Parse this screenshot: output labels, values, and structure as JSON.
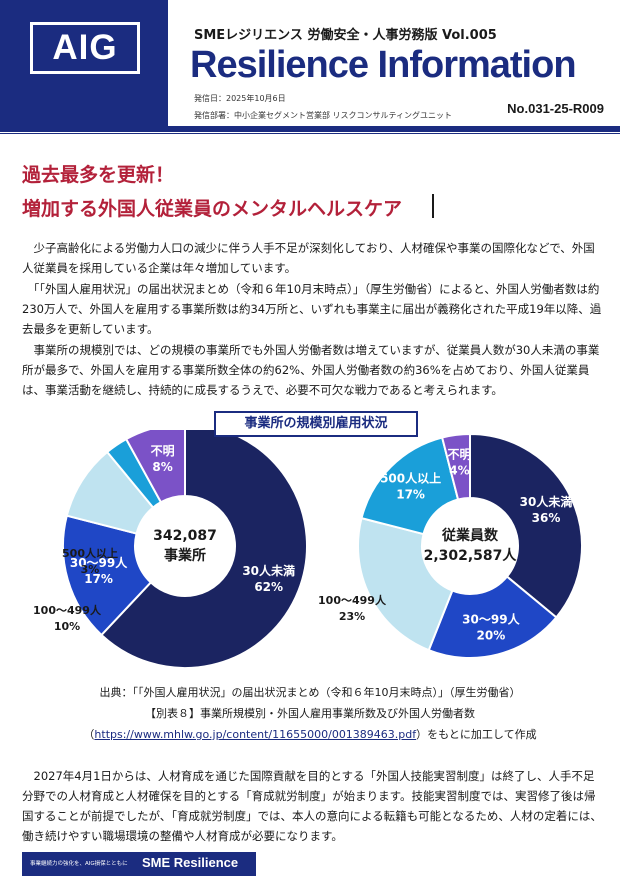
{
  "header": {
    "logo_text": "AIG",
    "series": "SMEレジリエンス 労働安全・人事労務版  Vol.005",
    "title": "Resilience Information",
    "issue_date": "発信日：2025年10月6日",
    "issuer": "発信部署：中小企業セグメント営業部  リスクコンサルティングユニット",
    "doc_number": "No.031-25-R009"
  },
  "headline": {
    "line1": "過去最多を更新！",
    "line2": "増加する外国人従業員のメンタルヘルスケア"
  },
  "body": {
    "p1": "　少子高齢化による労働力人口の減少に伴う人手不足が深刻化しており、人材確保や事業の国際化などで、外国人従業員を採用している企業は年々増加しています。",
    "p2": "　「「外国人雇用状況」の届出状況まとめ（令和６年10月末時点）」（厚生労働省）によると、外国人労働者数は約230万人で、外国人を雇用する事業所数は約34万所と、いずれも事業主に届出が義務化された平成19年以降、過去最多を更新しています。",
    "p3": "　事業所の規模別では、どの規模の事業所でも外国人労働者数は増えていますが、従業員人数が30人未満の事業所が最多で、外国人を雇用する事業所数全体の約62%、外国人労働者数の約36%を占めており、外国人従業員は、事業活動を継続し、持続的に成長するうえで、必要不可欠な戦力であると考えられます。",
    "p4": "　2027年4月1日からは、人材育成を通じた国際貢献を目的とする「外国人技能実習制度」は終了し、人手不足分野での人材育成と人材確保を目的とする「育成就労制度」が始まります。技能実習制度では、実習修了後は帰国することが前提でしたが、「育成就労制度」では、本人の意向による転籍も可能となるため、人材の定着には、働き続けやすい職場環境の整備や人材育成が必要になります。"
  },
  "chart_data": [
    {
      "type": "pie",
      "title": "事業所の規模別雇用状況",
      "center_label": [
        "342,087",
        "事業所"
      ],
      "slices": [
        {
          "label": "30人未満",
          "value": 62,
          "display": "62%",
          "color": "#1b2461"
        },
        {
          "label": "30～99人",
          "value": 17,
          "display": "17%",
          "color": "#1f47c6"
        },
        {
          "label": "100～499人",
          "value": 10,
          "display": "10%",
          "color": "#bfe3f0"
        },
        {
          "label": "500人以上",
          "value": 3,
          "display": "3%",
          "color": "#1a9fd9"
        },
        {
          "label": "不明",
          "value": 8,
          "display": "8%",
          "color": "#7b52c7"
        }
      ]
    },
    {
      "type": "pie",
      "center_label": [
        "従業員数",
        "2,302,587人"
      ],
      "slices": [
        {
          "label": "30人未満",
          "value": 36,
          "display": "36%",
          "color": "#1b2461"
        },
        {
          "label": "30～99人",
          "value": 20,
          "display": "20%",
          "color": "#1f47c6"
        },
        {
          "label": "100～499人",
          "value": 23,
          "display": "23%",
          "color": "#bfe3f0"
        },
        {
          "label": "500人以上",
          "value": 17,
          "display": "17%",
          "color": "#1a9fd9"
        },
        {
          "label": "不明",
          "value": 4,
          "display": "4%",
          "color": "#7b52c7"
        }
      ]
    }
  ],
  "source": {
    "line1": "出典：「「外国人雇用状況」の届出状況まとめ（令和６年10月末時点）」（厚生労働省）",
    "line2": "【別表８】事業所規模別・外国人雇用事業所数及び外国人労働者数",
    "url": "https://www.mhlw.go.jp/content/11655000/001389463.pdf",
    "suffix": "）をもとに加工して作成"
  },
  "footer": {
    "tagline": "事業継続力の強化を、AIG損保とともに",
    "brand": "SME Resilience"
  }
}
